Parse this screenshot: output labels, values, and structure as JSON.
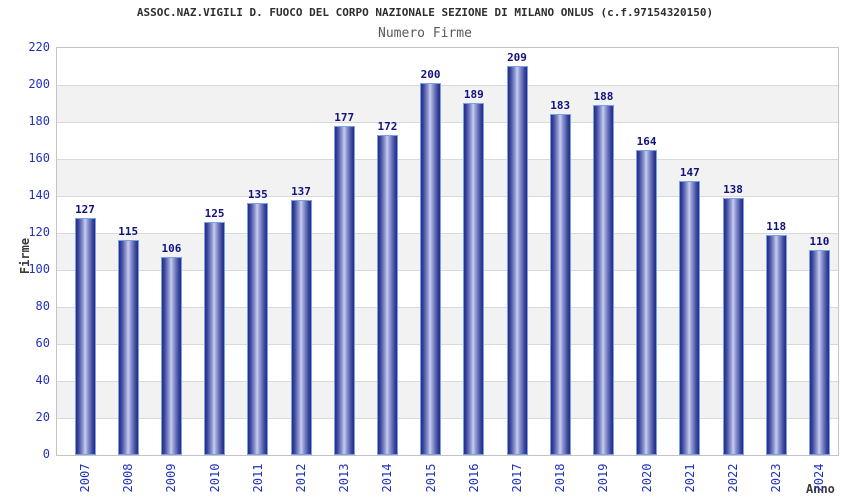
{
  "header": {
    "title": "ASSOC.NAZ.VIGILI D. FUOCO DEL CORPO NAZIONALE SEZIONE DI MILANO ONLUS (c.f.97154320150)",
    "subtitle": "Numero Firme"
  },
  "chart_data": {
    "type": "bar",
    "title": "Numero Firme",
    "xlabel": "Anno",
    "ylabel": "Firme",
    "categories": [
      "2007",
      "2008",
      "2009",
      "2010",
      "2011",
      "2012",
      "2013",
      "2014",
      "2015",
      "2016",
      "2017",
      "2018",
      "2019",
      "2020",
      "2021",
      "2022",
      "2023",
      "2024"
    ],
    "values": [
      127,
      115,
      106,
      125,
      135,
      137,
      177,
      172,
      200,
      189,
      209,
      183,
      188,
      164,
      147,
      138,
      118,
      110
    ],
    "ylim": [
      0,
      220
    ],
    "ytick_step": 20,
    "grid": "horizontal alternating bands with gridlines every 20",
    "legend": "none",
    "colors": {
      "bar_dark": "#232d84",
      "bar_highlight": "#c9cdec",
      "bar_border": "#79a1e6",
      "tick_label": "#2233bb",
      "value_label": "#12127e",
      "band_white": "#ffffff",
      "band_gray": "#f2f2f2",
      "gridline": "#d9d9d9",
      "plot_border": "#c4c4c4",
      "title_color": "#2e2e2e",
      "subtitle_color": "#5a5a5a",
      "axis_title_color": "#3a3a3a"
    }
  }
}
